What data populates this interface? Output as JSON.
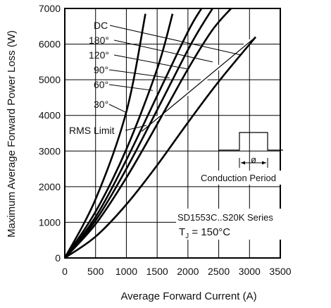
{
  "chart_data": {
    "type": "line",
    "xlabel": "Average Forward Current (A)",
    "ylabel": "Maximum Average Forward Power Loss (W)",
    "xlim": [
      0,
      3500
    ],
    "ylim": [
      0,
      7000
    ],
    "x_ticks": [
      "0",
      "500",
      "1000",
      "1500",
      "2000",
      "2500",
      "3000",
      "3500"
    ],
    "y_ticks": [
      "0",
      "1000",
      "2000",
      "3000",
      "4000",
      "5000",
      "6000",
      "7000"
    ],
    "grid": true,
    "series": [
      {
        "name": "DC",
        "x": [
          0,
          500,
          1000,
          1500,
          2000,
          2500,
          3100
        ],
        "y": [
          0,
          600,
          1500,
          2600,
          3800,
          4950,
          6200
        ]
      },
      {
        "name": "180°",
        "x": [
          0,
          500,
          1000,
          1500,
          2000,
          2400,
          2700
        ],
        "y": [
          0,
          950,
          2250,
          3750,
          5300,
          6400,
          7000
        ]
      },
      {
        "name": "120°",
        "x": [
          0,
          500,
          1000,
          1500,
          2050,
          2400
        ],
        "y": [
          0,
          1050,
          2500,
          4150,
          6000,
          7000
        ]
      },
      {
        "name": "90°",
        "x": [
          0,
          500,
          1000,
          1500,
          2000,
          2220
        ],
        "y": [
          0,
          1150,
          2750,
          4550,
          6350,
          7000
        ]
      },
      {
        "name": "60°",
        "x": [
          0,
          500,
          1000,
          1500,
          1750
        ],
        "y": [
          0,
          1300,
          3050,
          5300,
          6850
        ]
      },
      {
        "name": "30°",
        "x": [
          0,
          500,
          1000,
          1310
        ],
        "y": [
          0,
          1650,
          4100,
          6850
        ]
      }
    ],
    "rms_limit": {
      "label": "RMS Limit",
      "x": [
        1250,
        3100
      ],
      "y": [
        3550,
        6200
      ]
    },
    "annotations": {
      "conduction_period": "Conduction Period",
      "phi": "ø",
      "series_text": "SD1553C..S20K Series",
      "tj_prefix": "T",
      "tj_sub": "J",
      "tj_value": " = 150°C"
    }
  }
}
